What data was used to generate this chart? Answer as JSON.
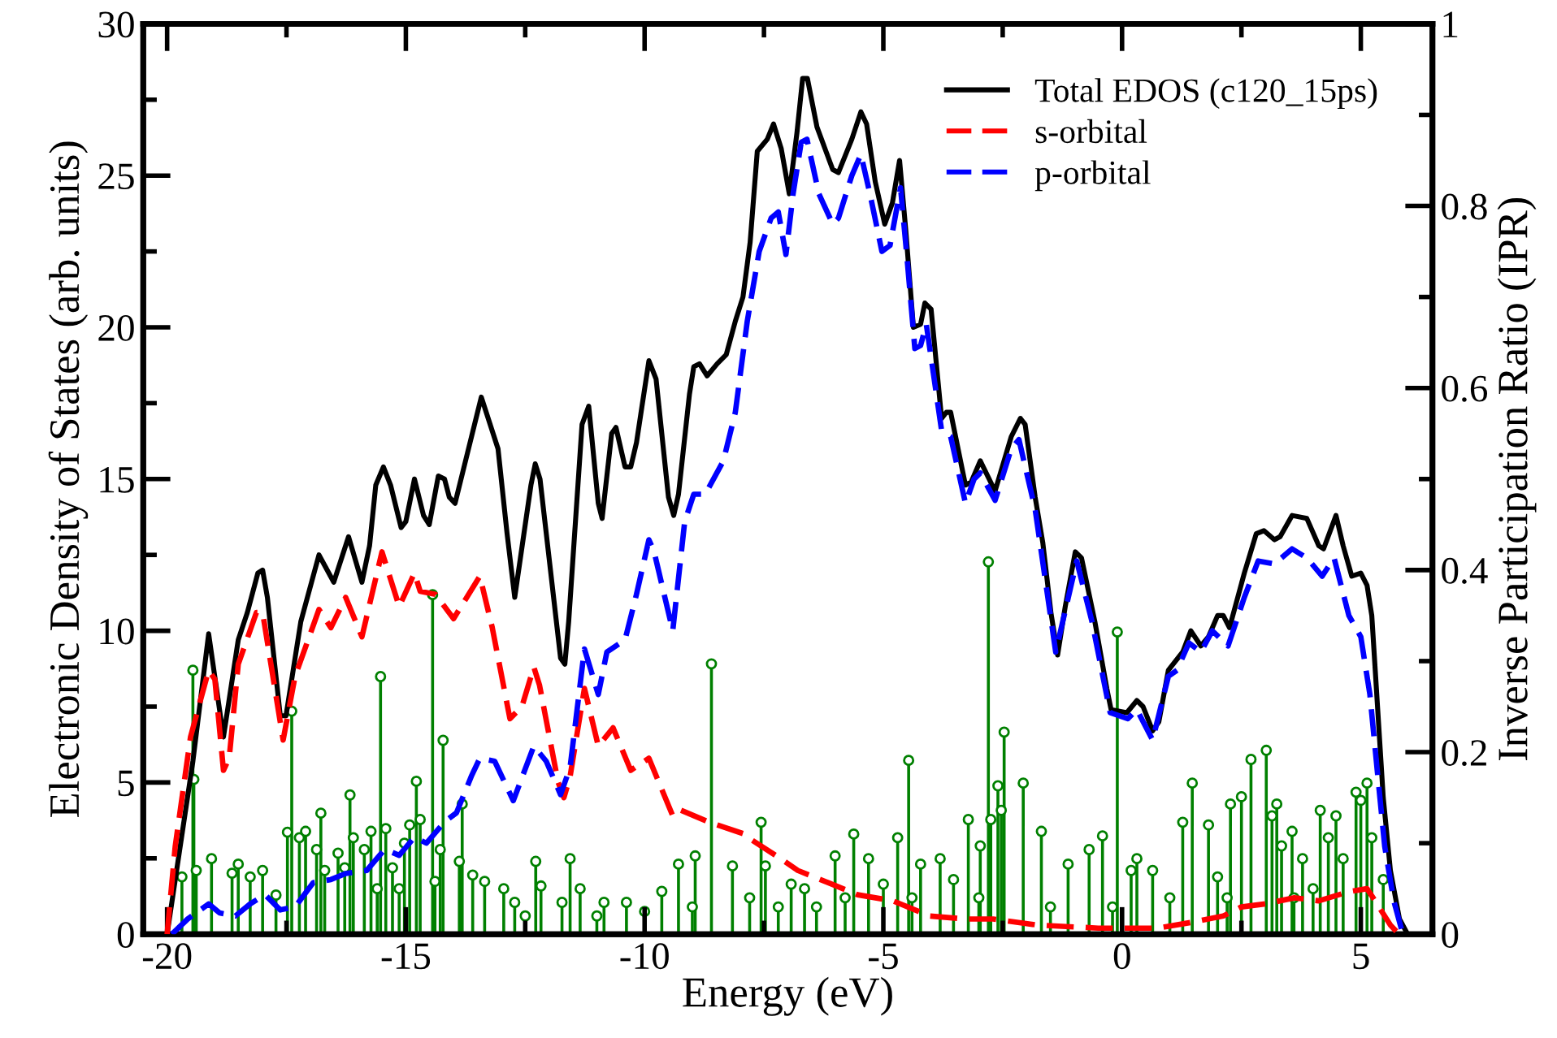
{
  "chart_data": {
    "type": "line",
    "xlabel": "Energy (eV)",
    "ylabel": "Electronic Density of States (arb. units)",
    "y2label": "Inverse Participation Ratio (IPR)",
    "xlim": [
      -20.5,
      6.5
    ],
    "ylim": [
      0,
      30
    ],
    "y2lim": [
      0,
      1
    ],
    "xticks": [
      -20,
      {
        "value": -17.5,
        "label": null
      },
      -15,
      {
        "value": -12.5,
        "label": null
      },
      -10,
      {
        "value": -7.5,
        "label": null
      },
      -5,
      {
        "value": -2.5,
        "label": null
      },
      0,
      {
        "value": 2.5,
        "label": null
      },
      5
    ],
    "yticks": [
      0,
      {
        "value": 2.5,
        "label": null
      },
      5,
      {
        "value": 7.5,
        "label": null
      },
      10,
      {
        "value": 12.5,
        "label": null
      },
      15,
      {
        "value": 17.5,
        "label": null
      },
      20,
      {
        "value": 22.5,
        "label": null
      },
      25,
      {
        "value": 27.5,
        "label": null
      },
      30
    ],
    "y2ticks": [
      0,
      {
        "value": 0.1,
        "label": null
      },
      0.2,
      {
        "value": 0.3,
        "label": null
      },
      0.4,
      {
        "value": 0.5,
        "label": null
      },
      0.6,
      {
        "value": 0.7,
        "label": null
      },
      0.8,
      {
        "value": 0.9,
        "label": null
      },
      1
    ],
    "grid": false,
    "legend": "top right",
    "series": [
      {
        "name": "Total EDOS (c120_15ps)",
        "color": "#000000",
        "line_style": "solid",
        "marker": "none",
        "x": [
          -20.0,
          -19.46,
          -19.13,
          -18.82,
          -18.51,
          -18.32,
          -18.1,
          -18.0,
          -17.9,
          -17.63,
          -17.51,
          -17.2,
          -16.82,
          -16.51,
          -16.2,
          -15.92,
          -15.76,
          -15.63,
          -15.47,
          -15.32,
          -15.1,
          -15.0,
          -14.82,
          -14.63,
          -14.51,
          -14.32,
          -14.19,
          -14.09,
          -13.97,
          -13.75,
          -13.42,
          -13.07,
          -12.88,
          -12.72,
          -12.38,
          -12.29,
          -12.19,
          -11.76,
          -11.67,
          -11.59,
          -11.31,
          -11.17,
          -10.97,
          -10.89,
          -10.69,
          -10.6,
          -10.41,
          -10.29,
          -10.17,
          -9.91,
          -9.76,
          -9.5,
          -9.39,
          -9.29,
          -9.06,
          -8.97,
          -8.85,
          -8.69,
          -8.48,
          -8.29,
          -8.1,
          -7.94,
          -7.79,
          -7.64,
          -7.43,
          -7.3,
          -7.14,
          -6.97,
          -6.81,
          -6.69,
          -6.59,
          -6.39,
          -6.06,
          -5.94,
          -5.66,
          -5.47,
          -5.35,
          -5.17,
          -4.97,
          -4.81,
          -4.66,
          -4.53,
          -4.37,
          -4.22,
          -4.13,
          -4.0,
          -3.78,
          -3.68,
          -3.59,
          -3.28,
          -3.16,
          -2.97,
          -2.66,
          -2.32,
          -2.13,
          -2.03,
          -1.82,
          -1.66,
          -1.49,
          -1.35,
          -1.19,
          -0.98,
          -0.85,
          -0.57,
          -0.32,
          -0.23,
          0.1,
          0.31,
          0.44,
          0.64,
          0.77,
          0.97,
          1.12,
          1.27,
          1.44,
          1.65,
          1.81,
          2.0,
          2.12,
          2.25,
          2.56,
          2.81,
          2.97,
          3.19,
          3.31,
          3.56,
          3.87,
          4.12,
          4.22,
          4.48,
          4.63,
          4.81,
          5.0,
          5.13,
          5.23,
          5.35,
          5.47,
          5.62,
          5.81,
          5.98
        ],
        "values": [
          0,
          5.7,
          9.9,
          6.5,
          9.7,
          10.6,
          11.9,
          12.0,
          11.1,
          7.2,
          7.2,
          10.3,
          12.5,
          11.6,
          13.1,
          11.6,
          12.8,
          14.8,
          15.4,
          14.8,
          13.4,
          13.6,
          15.0,
          13.8,
          13.5,
          15.1,
          15.0,
          14.4,
          14.2,
          15.6,
          17.7,
          16.0,
          13.2,
          11.1,
          14.8,
          15.5,
          15.0,
          9.1,
          8.9,
          10.3,
          16.8,
          17.4,
          14.2,
          13.7,
          16.5,
          16.7,
          15.4,
          15.4,
          16.2,
          18.9,
          18.3,
          14.4,
          13.8,
          14.5,
          17.8,
          18.7,
          18.8,
          18.4,
          18.8,
          19.1,
          20.2,
          21.0,
          22.8,
          25.8,
          26.2,
          26.7,
          25.9,
          24.4,
          26.4,
          28.2,
          28.2,
          26.6,
          25.2,
          25.1,
          26.2,
          27.1,
          26.7,
          24.8,
          23.4,
          24.1,
          25.5,
          23.2,
          20.0,
          20.1,
          20.8,
          20.6,
          17.0,
          17.2,
          17.2,
          14.8,
          14.9,
          15.6,
          14.6,
          16.4,
          17.0,
          16.8,
          14.4,
          12.9,
          10.6,
          9.2,
          10.8,
          12.6,
          12.4,
          10.3,
          8.1,
          7.4,
          7.3,
          7.7,
          7.5,
          6.7,
          7.0,
          8.7,
          9.0,
          9.3,
          10.0,
          9.5,
          9.8,
          10.5,
          10.5,
          10.1,
          11.9,
          13.2,
          13.3,
          13.0,
          13.1,
          13.8,
          13.7,
          12.8,
          12.7,
          13.8,
          12.8,
          11.8,
          11.9,
          11.5,
          10.5,
          7.5,
          4.5,
          2.1,
          0.5,
          0
        ]
      },
      {
        "name": "s-orbital",
        "color": "#ff0000",
        "line_style": "dashed",
        "marker": "none",
        "x": [
          -20.0,
          -19.83,
          -19.51,
          -19.13,
          -19.0,
          -18.82,
          -18.7,
          -18.51,
          -18.13,
          -18.0,
          -17.57,
          -17.32,
          -16.82,
          -16.57,
          -16.26,
          -15.92,
          -15.5,
          -15.14,
          -14.82,
          -14.7,
          -14.38,
          -14.0,
          -13.45,
          -13.19,
          -12.82,
          -12.57,
          -12.32,
          -12.2,
          -11.81,
          -11.69,
          -11.56,
          -11.26,
          -10.97,
          -10.66,
          -10.29,
          -9.91,
          -9.41,
          -9.26,
          -8.66,
          -7.91,
          -7.75,
          -7.16,
          -6.79,
          -6.16,
          -5.54,
          -4.8,
          -4.03,
          -3.28,
          -2.7,
          -1.76,
          -0.5,
          0.74,
          1.49,
          2.12,
          2.5,
          3.0,
          3.61,
          4.12,
          4.75,
          5.13,
          5.3,
          5.62,
          5.8
        ],
        "values": [
          0,
          2.9,
          6.5,
          8.7,
          8.4,
          5.4,
          5.8,
          8.9,
          10.6,
          10.6,
          6.4,
          8.5,
          10.7,
          10.1,
          11.1,
          9.8,
          12.6,
          10.8,
          11.9,
          11.3,
          11.2,
          10.4,
          11.8,
          10.1,
          7.1,
          7.5,
          8.8,
          8.2,
          5.0,
          4.5,
          5.2,
          8.1,
          6.2,
          6.8,
          5.4,
          5.8,
          3.9,
          4.1,
          3.7,
          3.3,
          3.1,
          2.5,
          2.1,
          1.7,
          1.3,
          1.1,
          0.6,
          0.5,
          0.5,
          0.3,
          0.2,
          0.2,
          0.4,
          0.6,
          0.9,
          1.0,
          1.2,
          1.1,
          1.4,
          1.5,
          1.1,
          0.3,
          0
        ]
      },
      {
        "name": "p-orbital",
        "color": "#0000ff",
        "line_style": "dashed",
        "marker": "none",
        "x": [
          -19.9,
          -19.57,
          -19.13,
          -18.9,
          -18.57,
          -18.26,
          -17.95,
          -17.63,
          -17.32,
          -16.94,
          -16.57,
          -16.26,
          -15.82,
          -15.44,
          -15.14,
          -14.82,
          -14.57,
          -14.19,
          -13.94,
          -13.63,
          -13.45,
          -13.14,
          -12.75,
          -12.32,
          -12.06,
          -11.76,
          -11.56,
          -11.26,
          -10.97,
          -10.79,
          -10.41,
          -10.17,
          -9.91,
          -9.8,
          -9.41,
          -9.16,
          -8.97,
          -8.73,
          -8.35,
          -8.1,
          -7.85,
          -7.6,
          -7.35,
          -7.2,
          -7.04,
          -6.89,
          -6.72,
          -6.6,
          -6.35,
          -6.06,
          -5.94,
          -5.66,
          -5.47,
          -5.28,
          -5.03,
          -4.86,
          -4.64,
          -4.51,
          -4.34,
          -4.22,
          -4.1,
          -3.78,
          -3.59,
          -3.28,
          -3.1,
          -2.97,
          -2.66,
          -2.32,
          -2.16,
          -1.82,
          -1.39,
          -0.95,
          -0.63,
          -0.25,
          0.12,
          0.31,
          0.64,
          0.97,
          1.15,
          1.4,
          1.65,
          1.89,
          2.22,
          2.56,
          2.85,
          3.19,
          3.56,
          3.87,
          4.19,
          4.44,
          4.75,
          5.0,
          5.19,
          5.35,
          5.5,
          5.69,
          5.88
        ],
        "values": [
          0,
          0.5,
          1.0,
          0.7,
          0.6,
          1.0,
          1.3,
          0.8,
          0.9,
          1.7,
          1.8,
          2.0,
          2.1,
          2.8,
          2.6,
          3.2,
          3.0,
          3.7,
          4.0,
          5.2,
          5.8,
          5.7,
          4.4,
          6.2,
          5.7,
          4.6,
          5.5,
          9.4,
          7.9,
          9.3,
          9.7,
          11.2,
          13.0,
          12.6,
          10.0,
          13.6,
          14.5,
          14.5,
          15.6,
          17.2,
          20.2,
          22.5,
          23.6,
          23.8,
          22.4,
          24.4,
          26.1,
          26.2,
          24.4,
          23.4,
          23.6,
          25.0,
          25.7,
          24.4,
          22.5,
          22.7,
          24.6,
          22.4,
          19.3,
          19.4,
          20.1,
          16.6,
          16.4,
          14.2,
          15.0,
          15.2,
          14.3,
          16.0,
          16.3,
          14.0,
          9.3,
          12.3,
          10.3,
          7.3,
          7.1,
          7.4,
          6.4,
          8.5,
          8.7,
          9.6,
          9.3,
          10.0,
          9.5,
          11.1,
          12.3,
          12.2,
          12.7,
          12.4,
          11.8,
          12.4,
          10.5,
          9.8,
          7.9,
          5.3,
          2.9,
          1.1,
          0
        ]
      },
      {
        "type": "lollipop",
        "axis": "y2",
        "color": "#008000",
        "marker": "circle",
        "x": [
          -19.69,
          -19.46,
          -19.44,
          -19.39,
          -19.07,
          -18.64,
          -18.51,
          -18.26,
          -18.0,
          -17.72,
          -17.48,
          -17.39,
          -17.23,
          -17.1,
          -16.87,
          -16.78,
          -16.7,
          -16.42,
          -16.28,
          -16.17,
          -16.1,
          -15.87,
          -15.73,
          -15.6,
          -15.53,
          -15.42,
          -15.28,
          -15.14,
          -15.03,
          -14.92,
          -14.78,
          -14.7,
          -14.44,
          -14.39,
          -14.28,
          -14.22,
          -13.88,
          -13.82,
          -13.6,
          -13.35,
          -12.95,
          -12.72,
          -12.5,
          -12.28,
          -12.17,
          -11.73,
          -11.56,
          -11.35,
          -11.0,
          -10.85,
          -10.38,
          -10.0,
          -9.64,
          -9.29,
          -9.0,
          -8.94,
          -8.6,
          -8.16,
          -7.8,
          -7.56,
          -7.47,
          -7.2,
          -6.93,
          -6.65,
          -6.4,
          -6.01,
          -5.8,
          -5.62,
          -5.31,
          -5.0,
          -4.7,
          -4.47,
          -4.4,
          -4.22,
          -3.81,
          -3.53,
          -3.22,
          -3.0,
          -2.97,
          -2.8,
          -2.75,
          -2.6,
          -2.53,
          -2.47,
          -2.07,
          -1.69,
          -1.5,
          -1.13,
          -0.69,
          -0.41,
          -0.2,
          -0.1,
          0.19,
          0.31,
          0.64,
          1.0,
          1.27,
          1.47,
          1.81,
          2.0,
          2.2,
          2.27,
          2.5,
          2.7,
          3.02,
          3.14,
          3.24,
          3.34,
          3.56,
          3.6,
          3.78,
          4.0,
          4.15,
          4.32,
          4.48,
          4.63,
          4.9,
          5.0,
          5.13,
          5.23,
          5.47
        ],
        "values": [
          0.063,
          0.29,
          0.17,
          0.07,
          0.083,
          0.067,
          0.077,
          0.063,
          0.07,
          0.043,
          0.112,
          0.245,
          0.106,
          0.113,
          0.093,
          0.133,
          0.07,
          0.089,
          0.073,
          0.153,
          0.106,
          0.093,
          0.113,
          0.05,
          0.283,
          0.116,
          0.073,
          0.05,
          0.1,
          0.12,
          0.168,
          0.126,
          0.373,
          0.058,
          0.093,
          0.213,
          0.08,
          0.143,
          0.065,
          0.058,
          0.05,
          0.035,
          0.02,
          0.08,
          0.053,
          0.035,
          0.083,
          0.05,
          0.02,
          0.035,
          0.035,
          0.025,
          0.047,
          0.077,
          0.03,
          0.086,
          0.297,
          0.075,
          0.04,
          0.123,
          0.075,
          0.03,
          0.055,
          0.05,
          0.03,
          0.086,
          0.04,
          0.11,
          0.083,
          0.055,
          0.106,
          0.191,
          0.04,
          0.077,
          0.083,
          0.06,
          0.126,
          0.04,
          0.097,
          0.409,
          0.126,
          0.163,
          0.136,
          0.222,
          0.166,
          0.113,
          0.03,
          0.077,
          0.093,
          0.108,
          0.03,
          0.332,
          0.07,
          0.083,
          0.07,
          0.04,
          0.123,
          0.166,
          0.12,
          0.063,
          0.04,
          0.143,
          0.151,
          0.192,
          0.202,
          0.13,
          0.143,
          0.097,
          0.113,
          0.04,
          0.083,
          0.05,
          0.136,
          0.106,
          0.13,
          0.083,
          0.156,
          0.147,
          0.166,
          0.106,
          0.06
        ]
      }
    ]
  }
}
